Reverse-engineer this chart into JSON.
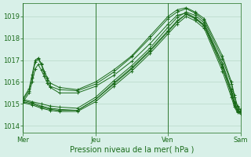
{
  "bg_color": "#d8f0e8",
  "grid_color": "#b8d8c8",
  "line_color": "#1a6b1a",
  "marker": "+",
  "xlabel": "Pression niveau de la mer( hPa )",
  "ylim": [
    1013.7,
    1019.6
  ],
  "yticks": [
    1014,
    1015,
    1016,
    1017,
    1018,
    1019
  ],
  "xtick_labels": [
    "Mer",
    "Jeu",
    "Ven",
    "Sam"
  ],
  "xtick_pos": [
    0,
    48,
    96,
    144
  ],
  "x_total": 144,
  "series": [
    [
      0,
      1015.2,
      4,
      1015.6,
      6,
      1016.2,
      8,
      1016.9,
      10,
      1017.05,
      12,
      1016.8,
      14,
      1016.4,
      16,
      1016.1,
      18,
      1015.8,
      24,
      1015.65,
      36,
      1015.6,
      48,
      1015.9,
      60,
      1016.45,
      72,
      1017.15,
      84,
      1018.0,
      96,
      1018.9,
      102,
      1019.2,
      108,
      1019.35,
      114,
      1019.15,
      120,
      1018.8,
      132,
      1017.05,
      138,
      1015.9,
      140,
      1015.3,
      142,
      1014.85,
      144,
      1014.7
    ],
    [
      0,
      1015.25,
      4,
      1015.7,
      6,
      1016.35,
      8,
      1017.0,
      10,
      1017.1,
      12,
      1016.85,
      14,
      1016.5,
      16,
      1016.2,
      18,
      1015.95,
      24,
      1015.75,
      36,
      1015.65,
      48,
      1016.0,
      60,
      1016.55,
      72,
      1017.2,
      84,
      1018.1,
      96,
      1019.0,
      102,
      1019.3,
      108,
      1019.4,
      114,
      1019.2,
      120,
      1018.9,
      132,
      1017.2,
      138,
      1016.0,
      140,
      1015.4,
      142,
      1014.9,
      144,
      1014.75
    ],
    [
      0,
      1015.1,
      4,
      1015.5,
      6,
      1016.0,
      8,
      1016.6,
      10,
      1016.8,
      12,
      1016.55,
      14,
      1016.25,
      16,
      1015.95,
      18,
      1015.75,
      24,
      1015.5,
      36,
      1015.5,
      48,
      1015.8,
      60,
      1016.3,
      72,
      1016.95,
      84,
      1017.75,
      96,
      1018.65,
      102,
      1019.05,
      108,
      1019.15,
      114,
      1018.95,
      120,
      1018.6,
      132,
      1016.85,
      138,
      1015.65,
      140,
      1015.1,
      142,
      1014.7,
      144,
      1014.6
    ],
    [
      0,
      1015.2,
      6,
      1015.1,
      12,
      1015.0,
      18,
      1014.9,
      24,
      1014.85,
      36,
      1014.8,
      48,
      1015.3,
      60,
      1016.05,
      72,
      1016.75,
      84,
      1017.55,
      96,
      1018.5,
      102,
      1018.95,
      108,
      1019.2,
      114,
      1019.05,
      120,
      1018.7,
      132,
      1016.85,
      138,
      1015.6,
      140,
      1015.05,
      142,
      1014.75,
      144,
      1014.65
    ],
    [
      0,
      1015.15,
      6,
      1015.05,
      12,
      1014.9,
      18,
      1014.8,
      24,
      1014.75,
      36,
      1014.7,
      48,
      1015.2,
      60,
      1015.95,
      72,
      1016.65,
      84,
      1017.45,
      96,
      1018.35,
      102,
      1018.8,
      108,
      1019.1,
      114,
      1018.9,
      120,
      1018.55,
      132,
      1016.65,
      138,
      1015.45,
      140,
      1014.95,
      142,
      1014.65,
      144,
      1014.6
    ],
    [
      0,
      1015.05,
      6,
      1014.95,
      12,
      1014.8,
      18,
      1014.7,
      24,
      1014.65,
      36,
      1014.65,
      48,
      1015.1,
      60,
      1015.8,
      72,
      1016.5,
      84,
      1017.3,
      96,
      1018.2,
      102,
      1018.65,
      108,
      1019.0,
      114,
      1018.8,
      120,
      1018.45,
      132,
      1016.5,
      138,
      1015.3,
      140,
      1014.85,
      142,
      1014.6,
      144,
      1014.55
    ],
    [
      0,
      1015.1,
      6,
      1015.0,
      12,
      1014.85,
      18,
      1014.75,
      24,
      1014.7,
      36,
      1014.7,
      48,
      1015.2,
      60,
      1015.9,
      72,
      1016.6,
      84,
      1017.4,
      96,
      1018.3,
      102,
      1018.75,
      108,
      1019.1,
      114,
      1018.9,
      120,
      1018.6,
      132,
      1016.7,
      138,
      1015.5,
      140,
      1015.0,
      142,
      1014.7,
      144,
      1014.6
    ]
  ]
}
